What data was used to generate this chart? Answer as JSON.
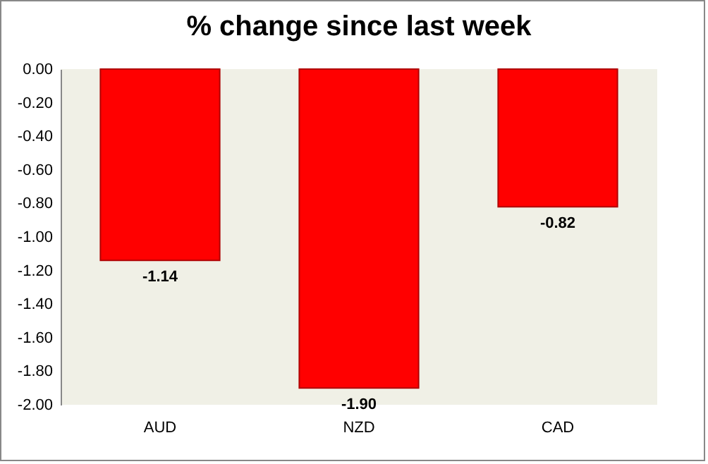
{
  "chart_data": {
    "type": "bar",
    "title": "% change since last week",
    "categories": [
      "AUD",
      "NZD",
      "CAD"
    ],
    "values": [
      -1.14,
      -1.9,
      -0.82
    ],
    "value_labels": [
      "-1.14",
      "-1.90",
      "-0.82"
    ],
    "color": "#ff0000",
    "ylim": [
      -2,
      0
    ],
    "yticks": [
      {
        "value": 0,
        "label": "0.00"
      },
      {
        "value": -0.2,
        "label": "-0.20"
      },
      {
        "value": -0.4,
        "label": "-0.40"
      },
      {
        "value": -0.6,
        "label": "-0.60"
      },
      {
        "value": -0.8,
        "label": "-0.80"
      },
      {
        "value": -1,
        "label": "-1.00"
      },
      {
        "value": -1.2,
        "label": "-1.20"
      },
      {
        "value": -1.4,
        "label": "-1.40"
      },
      {
        "value": -1.6,
        "label": "-1.60"
      },
      {
        "value": -1.8,
        "label": "-1.80"
      },
      {
        "value": -2,
        "label": "-2.00"
      }
    ]
  }
}
